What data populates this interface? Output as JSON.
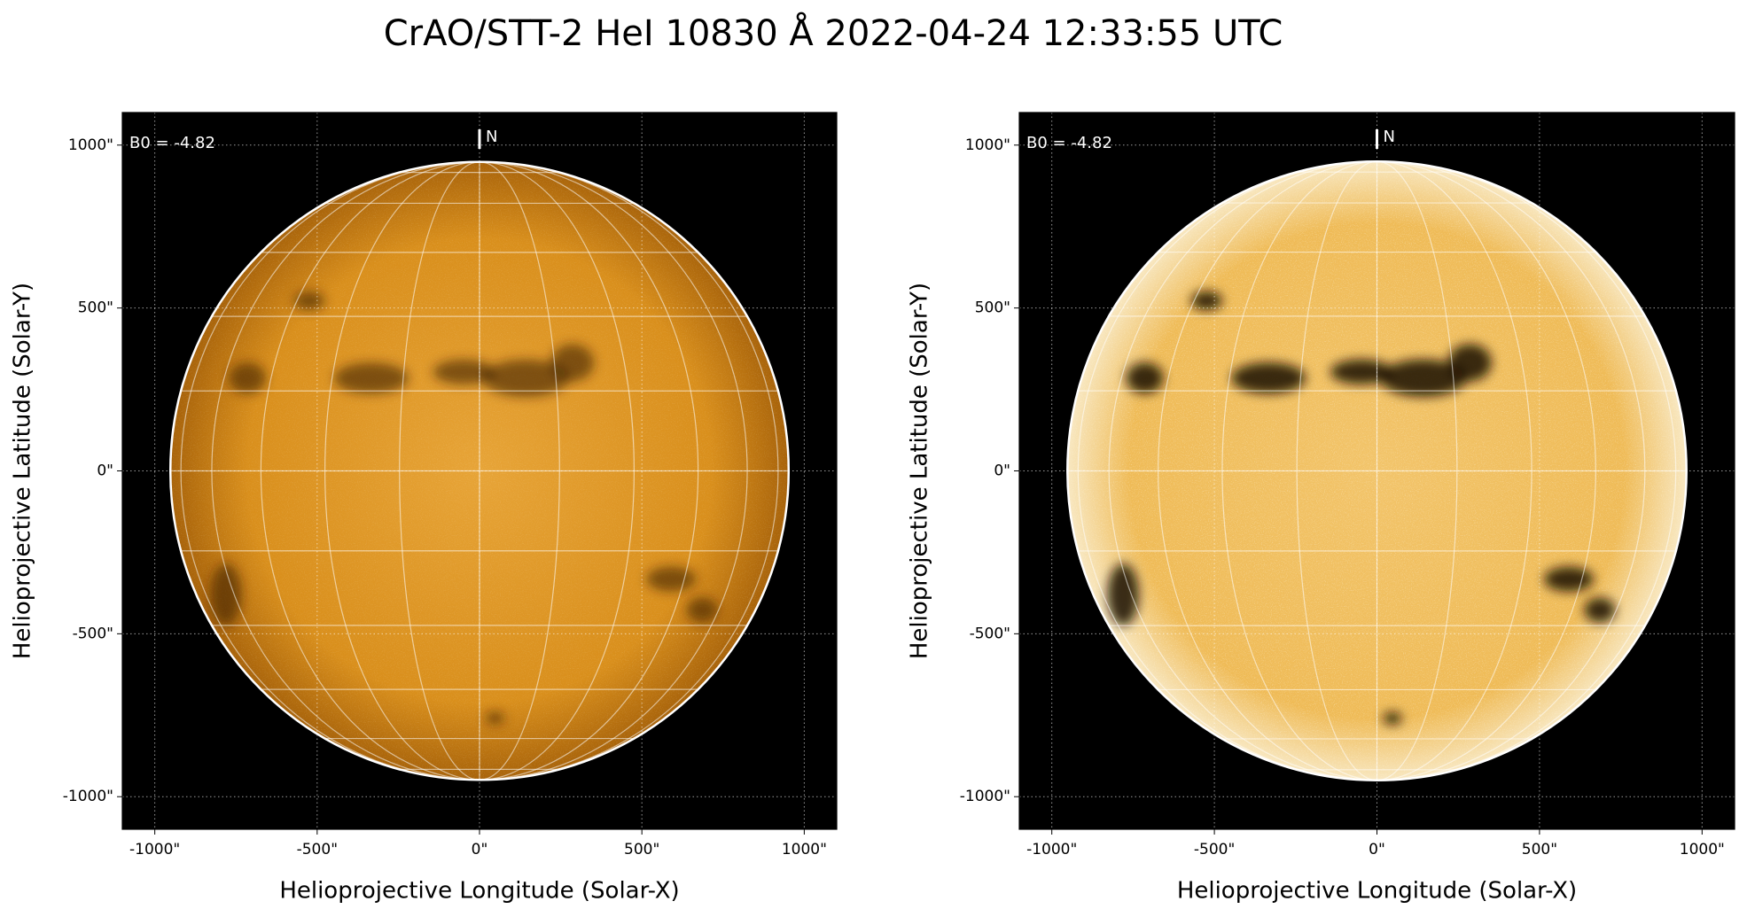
{
  "title": "CrAO/STT-2 HeI 10830 Å 2022-04-24 12:33:55 UTC",
  "chart_data": [
    {
      "type": "solar_image",
      "xlabel": "Helioprojective Longitude (Solar-X)",
      "ylabel": "Helioprojective Latitude (Solar-Y)",
      "b0_label": "B0 = -4.82",
      "north_label": "N",
      "solar_radius": 952,
      "grid": true,
      "xlim": [
        -1100,
        1100
      ],
      "ylim": [
        -1100,
        1100
      ],
      "xticks": [
        {
          "value": -1000,
          "label": "-1000\""
        },
        {
          "value": -500,
          "label": "-500\""
        },
        {
          "value": 0,
          "label": "0\""
        },
        {
          "value": 500,
          "label": "500\""
        },
        {
          "value": 1000,
          "label": "1000\""
        }
      ],
      "yticks": [
        {
          "value": -1000,
          "label": "-1000\""
        },
        {
          "value": -500,
          "label": "-500\""
        },
        {
          "value": 0,
          "label": "0\""
        },
        {
          "value": 500,
          "label": "500\""
        },
        {
          "value": 1000,
          "label": "1000\""
        }
      ]
    },
    {
      "type": "solar_image",
      "xlabel": "Helioprojective Longitude (Solar-X)",
      "ylabel": "Helioprojective Latitude (Solar-Y)",
      "b0_label": "B0 = -4.82",
      "north_label": "N",
      "solar_radius": 952,
      "grid": true,
      "xlim": [
        -1100,
        1100
      ],
      "ylim": [
        -1100,
        1100
      ],
      "xticks": [
        {
          "value": -1000,
          "label": "-1000\""
        },
        {
          "value": -500,
          "label": "-500\""
        },
        {
          "value": 0,
          "label": "0\""
        },
        {
          "value": 500,
          "label": "500\""
        },
        {
          "value": 1000,
          "label": "1000\""
        }
      ],
      "yticks": [
        {
          "value": -1000,
          "label": "-1000\""
        },
        {
          "value": -500,
          "label": "-500\""
        },
        {
          "value": 0,
          "label": "0\""
        },
        {
          "value": 500,
          "label": "500\""
        },
        {
          "value": 1000,
          "label": "1000\""
        }
      ]
    }
  ]
}
